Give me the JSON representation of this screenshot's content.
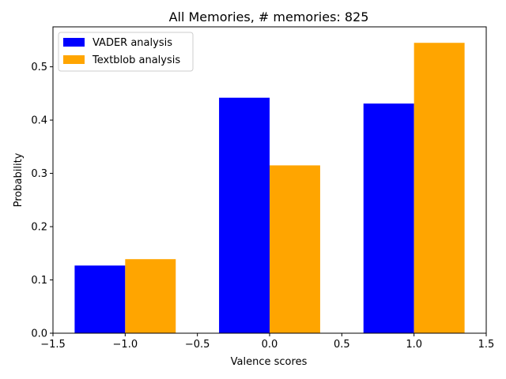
{
  "chart_data": {
    "type": "bar",
    "title": "All Memories, # memories: 825",
    "xlabel": "Valence scores",
    "ylabel": "Probability",
    "xlim": [
      -1.5,
      1.5
    ],
    "ylim": [
      0,
      0.575
    ],
    "x_ticks": [
      -1.5,
      -1.0,
      -0.5,
      0.0,
      0.5,
      1.0,
      1.5
    ],
    "x_tick_labels": [
      "−1.5",
      "−1.0",
      "−0.5",
      "0.0",
      "0.5",
      "1.0",
      "1.5"
    ],
    "y_ticks": [
      0.0,
      0.1,
      0.2,
      0.3,
      0.4,
      0.5
    ],
    "y_tick_labels": [
      "0.0",
      "0.1",
      "0.2",
      "0.3",
      "0.4",
      "0.5"
    ],
    "categories": [
      -1.0,
      0.0,
      1.0
    ],
    "bar_width": 0.35,
    "grid": false,
    "legend_position": "top-left",
    "series": [
      {
        "name": "VADER analysis",
        "color": "#0000ff",
        "offset": -0.175,
        "values": [
          0.127,
          0.442,
          0.431
        ]
      },
      {
        "name": "Textblob analysis",
        "color": "#ffa500",
        "offset": 0.175,
        "values": [
          0.139,
          0.315,
          0.545
        ]
      }
    ]
  }
}
